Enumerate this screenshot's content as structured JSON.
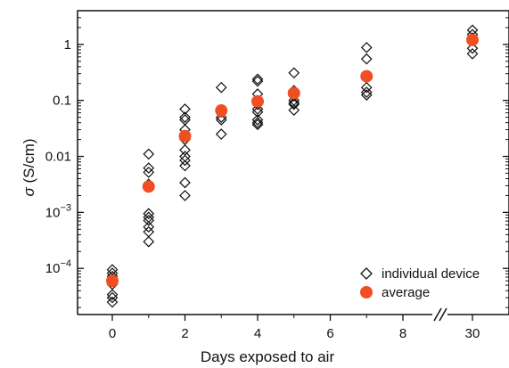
{
  "chart_data": {
    "type": "scatter",
    "title": "",
    "xlabel": "Days exposed to air",
    "ylabel_symbol": "σ",
    "ylabel_units": " (S/cm)",
    "yscale": "log",
    "ylim": [
      1.5e-05,
      4
    ],
    "x_ticks": [
      0,
      2,
      4,
      6,
      8,
      30
    ],
    "x_axis_break": "between 8 and 30",
    "y_ticks": [
      {
        "value": 0.0001,
        "base": "10",
        "exp": "−4",
        "plain": null
      },
      {
        "value": 0.001,
        "base": "10",
        "exp": "−3",
        "plain": null
      },
      {
        "value": 0.01,
        "base": null,
        "exp": null,
        "plain": "0.01"
      },
      {
        "value": 0.1,
        "base": null,
        "exp": null,
        "plain": "0.1"
      },
      {
        "value": 1,
        "base": null,
        "exp": null,
        "plain": "1"
      }
    ],
    "grid": false,
    "legend_position": "bottom-right",
    "series": [
      {
        "name": "individual device",
        "marker": "open-diamond",
        "color": "#111111",
        "points": [
          {
            "x": 0,
            "y": 9.5e-05
          },
          {
            "x": 0,
            "y": 8.2e-05
          },
          {
            "x": 0,
            "y": 7.2e-05
          },
          {
            "x": 0,
            "y": 6.5e-05
          },
          {
            "x": 0,
            "y": 5.8e-05
          },
          {
            "x": 0,
            "y": 5.2e-05
          },
          {
            "x": 0,
            "y": 3.4e-05
          },
          {
            "x": 0,
            "y": 3e-05
          },
          {
            "x": 0,
            "y": 2.5e-05
          },
          {
            "x": 1,
            "y": 0.011
          },
          {
            "x": 1,
            "y": 0.0062
          },
          {
            "x": 1,
            "y": 0.0052
          },
          {
            "x": 1,
            "y": 0.0032
          },
          {
            "x": 1,
            "y": 0.00095
          },
          {
            "x": 1,
            "y": 0.00082
          },
          {
            "x": 1,
            "y": 0.00072
          },
          {
            "x": 1,
            "y": 0.00055
          },
          {
            "x": 1,
            "y": 0.00045
          },
          {
            "x": 1,
            "y": 0.0003
          },
          {
            "x": 2,
            "y": 0.07
          },
          {
            "x": 2,
            "y": 0.05
          },
          {
            "x": 2,
            "y": 0.045
          },
          {
            "x": 2,
            "y": 0.03
          },
          {
            "x": 2,
            "y": 0.02
          },
          {
            "x": 2,
            "y": 0.013
          },
          {
            "x": 2,
            "y": 0.01
          },
          {
            "x": 2,
            "y": 0.0085
          },
          {
            "x": 2,
            "y": 0.0068
          },
          {
            "x": 2,
            "y": 0.0034
          },
          {
            "x": 2,
            "y": 0.002
          },
          {
            "x": 3,
            "y": 0.17
          },
          {
            "x": 3,
            "y": 0.062
          },
          {
            "x": 3,
            "y": 0.05
          },
          {
            "x": 3,
            "y": 0.045
          },
          {
            "x": 3,
            "y": 0.025
          },
          {
            "x": 4,
            "y": 0.24
          },
          {
            "x": 4,
            "y": 0.22
          },
          {
            "x": 4,
            "y": 0.13
          },
          {
            "x": 4,
            "y": 0.085
          },
          {
            "x": 4,
            "y": 0.07
          },
          {
            "x": 4,
            "y": 0.062
          },
          {
            "x": 4,
            "y": 0.045
          },
          {
            "x": 4,
            "y": 0.04
          },
          {
            "x": 4,
            "y": 0.037
          },
          {
            "x": 5,
            "y": 0.31
          },
          {
            "x": 5,
            "y": 0.15
          },
          {
            "x": 5,
            "y": 0.12
          },
          {
            "x": 5,
            "y": 0.1
          },
          {
            "x": 5,
            "y": 0.09
          },
          {
            "x": 5,
            "y": 0.085
          },
          {
            "x": 5,
            "y": 0.067
          },
          {
            "x": 7,
            "y": 0.88
          },
          {
            "x": 7,
            "y": 0.55
          },
          {
            "x": 7,
            "y": 0.17
          },
          {
            "x": 7,
            "y": 0.14
          },
          {
            "x": 7,
            "y": 0.125
          },
          {
            "x": 30,
            "y": 1.8
          },
          {
            "x": 30,
            "y": 1.5
          },
          {
            "x": 30,
            "y": 1.3
          },
          {
            "x": 30,
            "y": 0.85
          },
          {
            "x": 30,
            "y": 0.68
          }
        ]
      },
      {
        "name": "average",
        "marker": "filled-circle",
        "color": "#f04e23",
        "points": [
          {
            "x": 0,
            "y": 6e-05
          },
          {
            "x": 1,
            "y": 0.0029
          },
          {
            "x": 2,
            "y": 0.023
          },
          {
            "x": 3,
            "y": 0.066
          },
          {
            "x": 4,
            "y": 0.096
          },
          {
            "x": 5,
            "y": 0.135
          },
          {
            "x": 7,
            "y": 0.27
          },
          {
            "x": 30,
            "y": 1.2
          }
        ]
      }
    ]
  }
}
